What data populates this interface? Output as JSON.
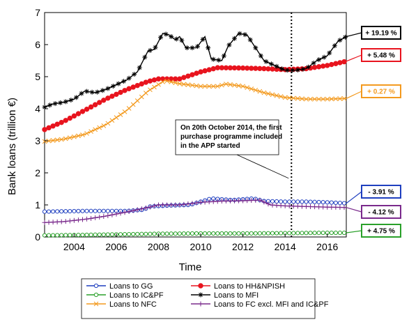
{
  "chart_data": {
    "type": "line",
    "xlabel": "Time",
    "ylabel": "Bank loans (trillion €)",
    "xlim": [
      2002.6,
      2016.9
    ],
    "ylim": [
      0,
      7
    ],
    "x_ticks": [
      2004,
      2006,
      2008,
      2010,
      2012,
      2014,
      2016
    ],
    "y_ticks": [
      0,
      1,
      2,
      3,
      4,
      5,
      6,
      7
    ],
    "grid": false,
    "legend_position": "bottom",
    "annotation": {
      "lines": [
        "On 20th October 2014, the first",
        "purchase programme included",
        "in the APP started"
      ],
      "event_x": 2014.3
    },
    "series": [
      {
        "name": "Loans to GG",
        "color": "#1f3fbf",
        "marker": "circle-open",
        "tag": "- 3.91 %",
        "points": [
          [
            2002.6,
            0.79
          ],
          [
            2003.5,
            0.8
          ],
          [
            2004.5,
            0.81
          ],
          [
            2005.5,
            0.81
          ],
          [
            2006.5,
            0.81
          ],
          [
            2007.3,
            0.85
          ],
          [
            2007.6,
            0.95
          ],
          [
            2008.5,
            0.98
          ],
          [
            2009.5,
            1.0
          ],
          [
            2010.5,
            1.2
          ],
          [
            2011.5,
            1.15
          ],
          [
            2012.5,
            1.2
          ],
          [
            2013.0,
            1.12
          ],
          [
            2014.0,
            1.1
          ],
          [
            2015.0,
            1.1
          ],
          [
            2016.0,
            1.08
          ],
          [
            2016.9,
            1.05
          ]
        ]
      },
      {
        "name": "Loans to HH&NPISH",
        "color": "#e8141e",
        "marker": "dot",
        "tag": "+ 5.48 %",
        "points": [
          [
            2002.6,
            3.35
          ],
          [
            2003.5,
            3.6
          ],
          [
            2004.5,
            3.95
          ],
          [
            2005.5,
            4.3
          ],
          [
            2006.5,
            4.6
          ],
          [
            2007.5,
            4.85
          ],
          [
            2008.0,
            4.93
          ],
          [
            2009.0,
            4.93
          ],
          [
            2010.0,
            5.15
          ],
          [
            2010.8,
            5.28
          ],
          [
            2012.0,
            5.27
          ],
          [
            2013.0,
            5.25
          ],
          [
            2014.0,
            5.22
          ],
          [
            2015.0,
            5.25
          ],
          [
            2016.0,
            5.35
          ],
          [
            2016.9,
            5.48
          ]
        ]
      },
      {
        "name": "Loans to NFC",
        "color": "#f39a1f",
        "marker": "x",
        "tag": "+ 0.27 %",
        "points": [
          [
            2002.6,
            2.98
          ],
          [
            2003.5,
            3.05
          ],
          [
            2004.5,
            3.2
          ],
          [
            2005.5,
            3.5
          ],
          [
            2006.5,
            3.95
          ],
          [
            2007.5,
            4.55
          ],
          [
            2008.3,
            4.88
          ],
          [
            2009.0,
            4.78
          ],
          [
            2010.0,
            4.7
          ],
          [
            2010.8,
            4.7
          ],
          [
            2011.2,
            4.77
          ],
          [
            2012.0,
            4.7
          ],
          [
            2013.0,
            4.5
          ],
          [
            2014.0,
            4.35
          ],
          [
            2015.0,
            4.3
          ],
          [
            2016.0,
            4.3
          ],
          [
            2016.9,
            4.32
          ]
        ]
      },
      {
        "name": "Loans to IC&PF",
        "color": "#2aa02a",
        "marker": "circle-open",
        "tag": "+ 4.75 %",
        "points": [
          [
            2002.6,
            0.05
          ],
          [
            2004.0,
            0.06
          ],
          [
            2006.0,
            0.08
          ],
          [
            2008.0,
            0.1
          ],
          [
            2010.0,
            0.11
          ],
          [
            2012.0,
            0.11
          ],
          [
            2014.0,
            0.12
          ],
          [
            2016.0,
            0.13
          ],
          [
            2016.9,
            0.13
          ]
        ]
      },
      {
        "name": "Loans to MFI",
        "color": "#000000",
        "marker": "star",
        "tag": "+ 19.19 %",
        "points": [
          [
            2002.6,
            4.05
          ],
          [
            2003.0,
            4.15
          ],
          [
            2003.5,
            4.2
          ],
          [
            2004.0,
            4.3
          ],
          [
            2004.5,
            4.55
          ],
          [
            2005.0,
            4.5
          ],
          [
            2005.5,
            4.6
          ],
          [
            2006.0,
            4.75
          ],
          [
            2006.5,
            4.9
          ],
          [
            2007.0,
            5.15
          ],
          [
            2007.5,
            5.8
          ],
          [
            2007.8,
            5.85
          ],
          [
            2008.2,
            6.35
          ],
          [
            2008.5,
            6.3
          ],
          [
            2008.8,
            6.15
          ],
          [
            2009.0,
            6.25
          ],
          [
            2009.3,
            5.9
          ],
          [
            2009.8,
            5.9
          ],
          [
            2010.2,
            6.25
          ],
          [
            2010.5,
            5.55
          ],
          [
            2011.0,
            5.5
          ],
          [
            2011.3,
            5.95
          ],
          [
            2011.8,
            6.35
          ],
          [
            2012.2,
            6.3
          ],
          [
            2012.6,
            5.9
          ],
          [
            2013.0,
            5.5
          ],
          [
            2013.5,
            5.35
          ],
          [
            2014.0,
            5.2
          ],
          [
            2014.5,
            5.2
          ],
          [
            2015.0,
            5.25
          ],
          [
            2015.5,
            5.5
          ],
          [
            2016.0,
            5.65
          ],
          [
            2016.5,
            6.1
          ],
          [
            2016.9,
            6.25
          ]
        ]
      },
      {
        "name": "Loans to FC excl. MFI and IC&PF",
        "color": "#7a2a8c",
        "marker": "plus",
        "tag": "- 4.12 %",
        "points": [
          [
            2002.6,
            0.45
          ],
          [
            2003.5,
            0.48
          ],
          [
            2004.5,
            0.55
          ],
          [
            2005.5,
            0.65
          ],
          [
            2006.5,
            0.78
          ],
          [
            2007.5,
            0.92
          ],
          [
            2008.0,
            1.0
          ],
          [
            2009.0,
            1.0
          ],
          [
            2010.0,
            1.08
          ],
          [
            2011.0,
            1.12
          ],
          [
            2012.0,
            1.13
          ],
          [
            2012.8,
            1.15
          ],
          [
            2013.3,
            1.0
          ],
          [
            2014.0,
            0.97
          ],
          [
            2015.0,
            0.95
          ],
          [
            2016.0,
            0.93
          ],
          [
            2016.9,
            0.92
          ]
        ]
      }
    ]
  }
}
